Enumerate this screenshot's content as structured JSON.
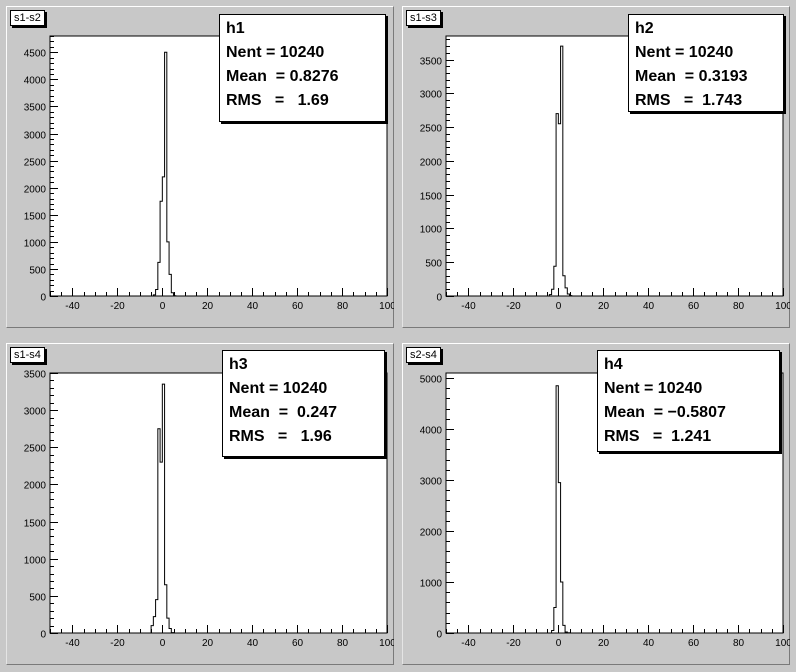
{
  "chart_data": [
    {
      "type": "histogram",
      "pad_title": "s1-s2",
      "stats": {
        "name": "h1",
        "nent_label": "Nent = 10240",
        "mean_label": "Mean  = 0.8276",
        "rms_label": "RMS   =   1.69"
      },
      "xlim": [
        -50,
        100
      ],
      "ylim": [
        0,
        4800
      ],
      "x_ticks": [
        -40,
        -20,
        0,
        20,
        40,
        60,
        80,
        100
      ],
      "y_ticks": [
        0,
        500,
        1000,
        1500,
        2000,
        2500,
        3000,
        3500,
        4000,
        4500
      ],
      "bin_width": 1,
      "bins": [
        {
          "x": -5,
          "y": 0
        },
        {
          "x": -4,
          "y": 20
        },
        {
          "x": -3,
          "y": 120
        },
        {
          "x": -2,
          "y": 620
        },
        {
          "x": -1,
          "y": 1750
        },
        {
          "x": 0,
          "y": 2200
        },
        {
          "x": 1,
          "y": 4500
        },
        {
          "x": 2,
          "y": 1000
        },
        {
          "x": 3,
          "y": 400
        },
        {
          "x": 4,
          "y": 60
        },
        {
          "x": 5,
          "y": 5
        }
      ]
    },
    {
      "type": "histogram",
      "pad_title": "s1-s3",
      "stats": {
        "name": "h2",
        "nent_label": "Nent = 10240",
        "mean_label": "Mean  = 0.3193",
        "rms_label": "RMS   =  1.743"
      },
      "xlim": [
        -50,
        100
      ],
      "ylim": [
        0,
        3850
      ],
      "x_ticks": [
        -40,
        -20,
        0,
        20,
        40,
        60,
        80,
        100
      ],
      "y_ticks": [
        0,
        500,
        1000,
        1500,
        2000,
        2500,
        3000,
        3500
      ],
      "bin_width": 1,
      "bins": [
        {
          "x": -5,
          "y": 0
        },
        {
          "x": -4,
          "y": 20
        },
        {
          "x": -3,
          "y": 100
        },
        {
          "x": -2,
          "y": 440
        },
        {
          "x": -1,
          "y": 2700
        },
        {
          "x": 0,
          "y": 2550
        },
        {
          "x": 1,
          "y": 3700
        },
        {
          "x": 2,
          "y": 300
        },
        {
          "x": 3,
          "y": 120
        },
        {
          "x": 4,
          "y": 30
        },
        {
          "x": 5,
          "y": 5
        }
      ]
    },
    {
      "type": "histogram",
      "pad_title": "s1-s4",
      "stats": {
        "name": "h3",
        "nent_label": "Nent = 10240",
        "mean_label": "Mean  =  0.247",
        "rms_label": "RMS   =   1.96"
      },
      "xlim": [
        -50,
        100
      ],
      "ylim": [
        0,
        3500
      ],
      "x_ticks": [
        -40,
        -20,
        0,
        20,
        40,
        60,
        80,
        100
      ],
      "y_ticks": [
        0,
        500,
        1000,
        1500,
        2000,
        2500,
        3000,
        3500
      ],
      "bin_width": 1,
      "bins": [
        {
          "x": -6,
          "y": 0
        },
        {
          "x": -5,
          "y": 100
        },
        {
          "x": -4,
          "y": 220
        },
        {
          "x": -3,
          "y": 450
        },
        {
          "x": -2,
          "y": 2750
        },
        {
          "x": -1,
          "y": 2300
        },
        {
          "x": 0,
          "y": 3350
        },
        {
          "x": 1,
          "y": 650
        },
        {
          "x": 2,
          "y": 200
        },
        {
          "x": 3,
          "y": 60
        },
        {
          "x": 4,
          "y": 5
        }
      ]
    },
    {
      "type": "histogram",
      "pad_title": "s2-s4",
      "stats": {
        "name": "h4",
        "nent_label": "Nent = 10240",
        "mean_label": "Mean  = −0.5807",
        "rms_label": "RMS   =  1.241"
      },
      "xlim": [
        -50,
        100
      ],
      "ylim": [
        0,
        5100
      ],
      "x_ticks": [
        -40,
        -20,
        0,
        20,
        40,
        60,
        80,
        100
      ],
      "y_ticks": [
        0,
        1000,
        2000,
        3000,
        4000,
        5000
      ],
      "bin_width": 1,
      "bins": [
        {
          "x": -4,
          "y": 0
        },
        {
          "x": -3,
          "y": 50
        },
        {
          "x": -2,
          "y": 500
        },
        {
          "x": -1,
          "y": 4850
        },
        {
          "x": 0,
          "y": 2950
        },
        {
          "x": 1,
          "y": 1000
        },
        {
          "x": 2,
          "y": 150
        },
        {
          "x": 3,
          "y": 20
        },
        {
          "x": 4,
          "y": 5
        }
      ]
    }
  ]
}
